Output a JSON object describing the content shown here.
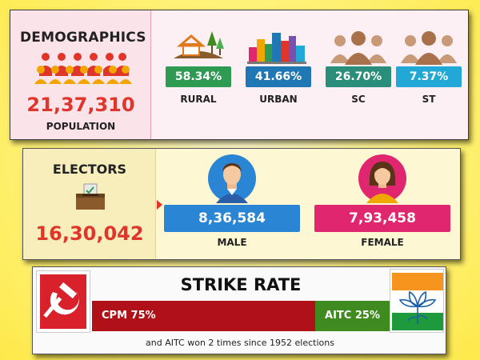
{
  "demographics": {
    "title": "DEMOGRAPHICS",
    "population_value": "21,37,310",
    "population_label": "POPULATION",
    "stats": [
      {
        "value": "58.34%",
        "label": "RURAL",
        "color": "#2e9a52",
        "icon": "rural-landscape-icon"
      },
      {
        "value": "41.66%",
        "label": "URBAN",
        "color": "#1f77b4",
        "icon": "city-buildings-icon"
      },
      {
        "value": "26.70%",
        "label": "SC",
        "color": "#2a8e7a",
        "icon": "people-group-icon"
      },
      {
        "value": "7.37%",
        "label": "ST",
        "color": "#22a8d6",
        "icon": "people-group-icon"
      }
    ]
  },
  "electors": {
    "title": "ELECTORS",
    "total_value": "16,30,042",
    "male": {
      "value": "8,36,584",
      "label": "MALE",
      "color": "#2a86d4"
    },
    "female": {
      "value": "7,93,458",
      "label": "FEMALE",
      "color": "#e0266f"
    }
  },
  "strike_rate": {
    "title": "STRIKE RATE",
    "cpm_label": "CPM 75%",
    "cpm_share": 0.75,
    "cpm_color": "#b01017",
    "aitc_label": "AITC 25%",
    "aitc_share": 0.25,
    "aitc_color": "#3f8b1f",
    "caption": "and AITC won 2 times since 1952 elections"
  }
}
